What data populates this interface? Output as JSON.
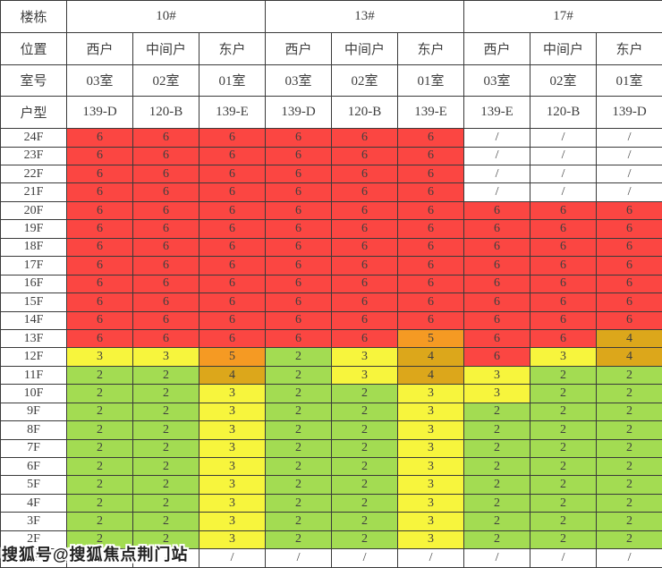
{
  "colors": {
    "r": "#FB4642",
    "o": "#F59A23",
    "d": "#DCA71B",
    "y": "#F7F53D",
    "g": "#A3DC52",
    "w": "#FFFFFF"
  },
  "watermark": "搜狐号@搜狐焦点荆门站",
  "chart_data": {
    "type": "table",
    "title": "",
    "corner_labels": [
      "楼栋",
      "位置",
      "室号",
      "户型"
    ],
    "buildings": [
      "10#",
      "13#",
      "17#"
    ],
    "positions": [
      "西户",
      "中间户",
      "东户",
      "西户",
      "中间户",
      "东户",
      "西户",
      "中间户",
      "东户"
    ],
    "rooms": [
      "03室",
      "02室",
      "01室",
      "03室",
      "02室",
      "01室",
      "03室",
      "02室",
      "01室"
    ],
    "unit_types": [
      "139-D",
      "120-B",
      "139-E",
      "139-D",
      "120-B",
      "139-E",
      "139-E",
      "120-B",
      "139-D"
    ],
    "legend_note": "cell color codes: r=red, o=orange, d=gold, y=yellow, g=green, w=white/none",
    "floors": [
      {
        "label": "24F",
        "values": [
          "6",
          "6",
          "6",
          "6",
          "6",
          "6",
          "/",
          "/",
          "/"
        ],
        "colors": [
          "r",
          "r",
          "r",
          "r",
          "r",
          "r",
          "w",
          "w",
          "w"
        ]
      },
      {
        "label": "23F",
        "values": [
          "6",
          "6",
          "6",
          "6",
          "6",
          "6",
          "/",
          "/",
          "/"
        ],
        "colors": [
          "r",
          "r",
          "r",
          "r",
          "r",
          "r",
          "w",
          "w",
          "w"
        ]
      },
      {
        "label": "22F",
        "values": [
          "6",
          "6",
          "6",
          "6",
          "6",
          "6",
          "/",
          "/",
          "/"
        ],
        "colors": [
          "r",
          "r",
          "r",
          "r",
          "r",
          "r",
          "w",
          "w",
          "w"
        ]
      },
      {
        "label": "21F",
        "values": [
          "6",
          "6",
          "6",
          "6",
          "6",
          "6",
          "/",
          "/",
          "/"
        ],
        "colors": [
          "r",
          "r",
          "r",
          "r",
          "r",
          "r",
          "w",
          "w",
          "w"
        ]
      },
      {
        "label": "20F",
        "values": [
          "6",
          "6",
          "6",
          "6",
          "6",
          "6",
          "6",
          "6",
          "6"
        ],
        "colors": [
          "r",
          "r",
          "r",
          "r",
          "r",
          "r",
          "r",
          "r",
          "r"
        ]
      },
      {
        "label": "19F",
        "values": [
          "6",
          "6",
          "6",
          "6",
          "6",
          "6",
          "6",
          "6",
          "6"
        ],
        "colors": [
          "r",
          "r",
          "r",
          "r",
          "r",
          "r",
          "r",
          "r",
          "r"
        ]
      },
      {
        "label": "18F",
        "values": [
          "6",
          "6",
          "6",
          "6",
          "6",
          "6",
          "6",
          "6",
          "6"
        ],
        "colors": [
          "r",
          "r",
          "r",
          "r",
          "r",
          "r",
          "r",
          "r",
          "r"
        ]
      },
      {
        "label": "17F",
        "values": [
          "6",
          "6",
          "6",
          "6",
          "6",
          "6",
          "6",
          "6",
          "6"
        ],
        "colors": [
          "r",
          "r",
          "r",
          "r",
          "r",
          "r",
          "r",
          "r",
          "r"
        ]
      },
      {
        "label": "16F",
        "values": [
          "6",
          "6",
          "6",
          "6",
          "6",
          "6",
          "6",
          "6",
          "6"
        ],
        "colors": [
          "r",
          "r",
          "r",
          "r",
          "r",
          "r",
          "r",
          "r",
          "r"
        ]
      },
      {
        "label": "15F",
        "values": [
          "6",
          "6",
          "6",
          "6",
          "6",
          "6",
          "6",
          "6",
          "6"
        ],
        "colors": [
          "r",
          "r",
          "r",
          "r",
          "r",
          "r",
          "r",
          "r",
          "r"
        ]
      },
      {
        "label": "14F",
        "values": [
          "6",
          "6",
          "6",
          "6",
          "6",
          "6",
          "6",
          "6",
          "6"
        ],
        "colors": [
          "r",
          "r",
          "r",
          "r",
          "r",
          "r",
          "r",
          "r",
          "r"
        ]
      },
      {
        "label": "13F",
        "values": [
          "6",
          "6",
          "6",
          "6",
          "6",
          "5",
          "6",
          "6",
          "4"
        ],
        "colors": [
          "r",
          "r",
          "r",
          "r",
          "r",
          "o",
          "r",
          "r",
          "d"
        ]
      },
      {
        "label": "12F",
        "values": [
          "3",
          "3",
          "5",
          "2",
          "3",
          "4",
          "6",
          "3",
          "4"
        ],
        "colors": [
          "y",
          "y",
          "o",
          "g",
          "y",
          "d",
          "r",
          "y",
          "d"
        ]
      },
      {
        "label": "11F",
        "values": [
          "2",
          "2",
          "4",
          "2",
          "3",
          "4",
          "3",
          "2",
          "2"
        ],
        "colors": [
          "g",
          "g",
          "d",
          "g",
          "y",
          "d",
          "y",
          "g",
          "g"
        ]
      },
      {
        "label": "10F",
        "values": [
          "2",
          "2",
          "3",
          "2",
          "2",
          "3",
          "3",
          "2",
          "2"
        ],
        "colors": [
          "g",
          "g",
          "y",
          "g",
          "g",
          "y",
          "y",
          "g",
          "g"
        ]
      },
      {
        "label": "9F",
        "values": [
          "2",
          "2",
          "3",
          "2",
          "2",
          "3",
          "2",
          "2",
          "2"
        ],
        "colors": [
          "g",
          "g",
          "y",
          "g",
          "g",
          "y",
          "g",
          "g",
          "g"
        ]
      },
      {
        "label": "8F",
        "values": [
          "2",
          "2",
          "3",
          "2",
          "2",
          "3",
          "2",
          "2",
          "2"
        ],
        "colors": [
          "g",
          "g",
          "y",
          "g",
          "g",
          "y",
          "g",
          "g",
          "g"
        ]
      },
      {
        "label": "7F",
        "values": [
          "2",
          "2",
          "3",
          "2",
          "2",
          "3",
          "2",
          "2",
          "2"
        ],
        "colors": [
          "g",
          "g",
          "y",
          "g",
          "g",
          "y",
          "g",
          "g",
          "g"
        ]
      },
      {
        "label": "6F",
        "values": [
          "2",
          "2",
          "3",
          "2",
          "2",
          "3",
          "2",
          "2",
          "2"
        ],
        "colors": [
          "g",
          "g",
          "y",
          "g",
          "g",
          "y",
          "g",
          "g",
          "g"
        ]
      },
      {
        "label": "5F",
        "values": [
          "2",
          "2",
          "3",
          "2",
          "2",
          "3",
          "2",
          "2",
          "2"
        ],
        "colors": [
          "g",
          "g",
          "y",
          "g",
          "g",
          "y",
          "g",
          "g",
          "g"
        ]
      },
      {
        "label": "4F",
        "values": [
          "2",
          "2",
          "3",
          "2",
          "2",
          "3",
          "2",
          "2",
          "2"
        ],
        "colors": [
          "g",
          "g",
          "y",
          "g",
          "g",
          "y",
          "g",
          "g",
          "g"
        ]
      },
      {
        "label": "3F",
        "values": [
          "2",
          "2",
          "3",
          "2",
          "2",
          "3",
          "2",
          "2",
          "2"
        ],
        "colors": [
          "g",
          "g",
          "y",
          "g",
          "g",
          "y",
          "g",
          "g",
          "g"
        ]
      },
      {
        "label": "2F",
        "values": [
          "2",
          "2",
          "3",
          "2",
          "2",
          "3",
          "2",
          "2",
          "2"
        ],
        "colors": [
          "g",
          "g",
          "y",
          "g",
          "g",
          "y",
          "g",
          "g",
          "g"
        ]
      },
      {
        "label": "1F",
        "values": [
          "/",
          "/",
          "/",
          "/",
          "/",
          "/",
          "/",
          "/",
          "/"
        ],
        "colors": [
          "w",
          "w",
          "w",
          "w",
          "w",
          "w",
          "w",
          "w",
          "w"
        ]
      }
    ]
  }
}
